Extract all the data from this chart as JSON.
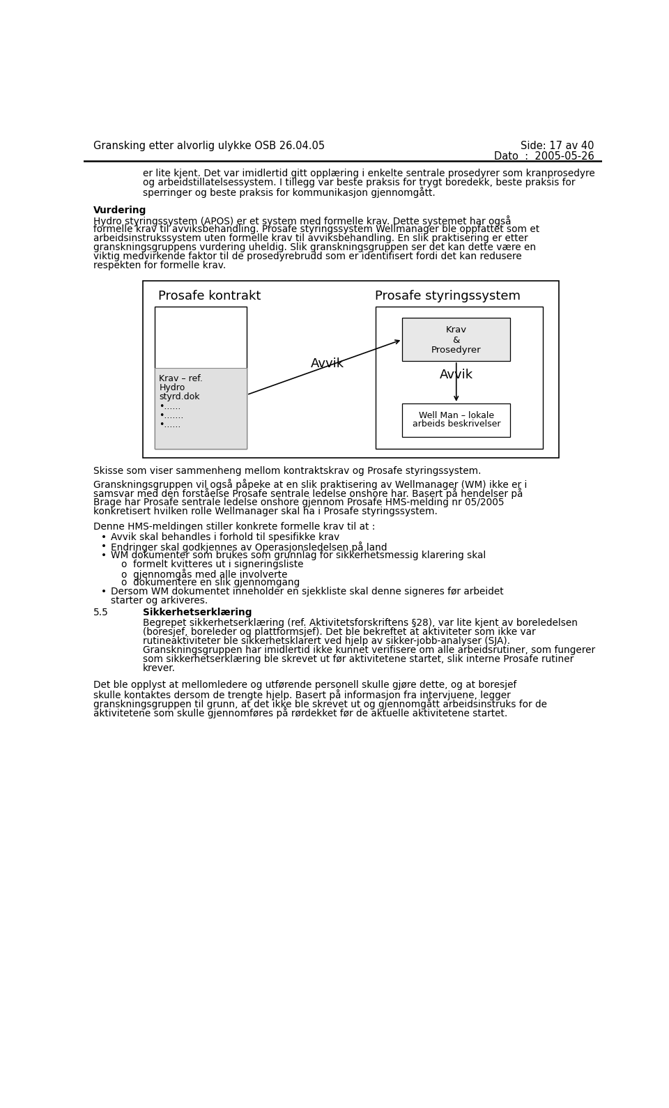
{
  "header_left": "Gransking etter alvorlig ulykke OSB 26.04.05",
  "header_right_line1": "Side: 17 av 40",
  "header_right_line2": "Dato  :  2005-05-26",
  "body_text_top": "er lite kjent. Det var imidlertid gitt opplæring i enkelte sentrale prosedyrer som kranprosedyre\nog arbeidstillatelsessystem. I tillegg var beste praksis for trygt boredekk, beste praksis for\nsperringer og beste praksis for kommunikasjon gjennomgått.",
  "vurdering_title": "Vurdering",
  "vurdering_lines": [
    "Hydro styringssystem (APOS) er et system med formelle krav. Dette systemet har også",
    "formelle krav til avviksbehandling. Prosafe styringssystem Wellmanager ble oppfattet som et",
    "arbeidsinstrukssystem uten formelle krav til avviksbehandling. En slik praktisering er etter",
    "granskningsgruppens vurdering uheldig. Slik granskningsgruppen ser det kan dette være en",
    "viktig medvirkende faktor til de prosedyrebrudd som er identifisert fordi det kan redusere",
    "respekten for formelle krav."
  ],
  "diagram_label_left": "Prosafe kontrakt",
  "diagram_label_right": "Prosafe styringssystem",
  "box_left_lines": [
    "Krav – ref.",
    "Hydro",
    "styrd.dok",
    "•......",
    "•.......",
    "•......"
  ],
  "box_top_right_lines": [
    "Krav",
    "&",
    "Prosedyrer"
  ],
  "box_bottom_right_lines": [
    "Well Man – lokale",
    "arbeids beskrivelser"
  ],
  "avvik_diagonal": "Avvik",
  "avvik_vertical": "Avvik",
  "caption": "Skisse som viser sammenheng mellom kontraktskrav og Prosafe styringssystem.",
  "para2_lines": [
    "Granskningsgruppen vil også påpeke at en slik praktisering av Wellmanager (WM) ikke er i",
    "samsvar med den forståelse Prosafe sentrale ledelse onshore har. Basert på hendelser på",
    "Brage har Prosafe sentrale ledelse onshore gjennom Prosafe HMS-melding nr 05/2005",
    "konkretisert hvilken rolle Wellmanager skal ha i Prosafe styringssystem."
  ],
  "para3_intro": "Denne HMS-meldingen stiller konkrete formelle krav til at :",
  "bullet1": "Avvik skal behandles i forhold til spesifikke krav",
  "bullet2": "Endringer skal godkjennes av Operasjonsledelsen på land",
  "bullet3": "WM dokumenter som brukes som grunnlag for sikkerhetsmessig klarering skal",
  "sub1": "formelt kvitteres ut i signeringsliste",
  "sub2": "gjennomgås med alle involverte",
  "sub3": "dokumentere en slik gjennomgang",
  "bullet4_lines": [
    "Dersom WM dokumentet inneholder en sjekkliste skal denne signeres før arbeidet",
    "starter og arkiveres."
  ],
  "sec_num": "5.5",
  "sec_title": "Sikkerhetserklæring",
  "sec_lines": [
    "Begrepet sikkerhetserklæring (ref. Aktivitetsforskriftens §28), var lite kjent av boreledelsen",
    "(boresjef, boreleder og plattformsjef). Det ble bekreftet at aktiviteter som ikke var",
    "rutineaktiviteter ble sikkerhetsklarert ved hjelp av sikker-jobb-analyser (SJA).",
    "Granskningsgruppen har imidlertid ikke kunnet verifisere om alle arbeidsrutiner, som fungerer",
    "som sikkerhetserklæring ble skrevet ut før aktivitetene startet, slik interne Prosafe rutiner",
    "krever."
  ],
  "last_lines": [
    "Det ble opplyst at mellomledere og utførende personell skulle gjøre dette, og at boresjef",
    "skulle kontaktes dersom de trengte hjelp. Basert på informasjon fra intervjuene, legger",
    "granskningsgruppen til grunn, at det ikke ble skrevet ut og gjennomgått arbeidsinstruks for de",
    "aktivitetene som skulle gjennomføres på rørdekket før de aktuelle aktivitetene startet."
  ],
  "bg_color": "#ffffff"
}
